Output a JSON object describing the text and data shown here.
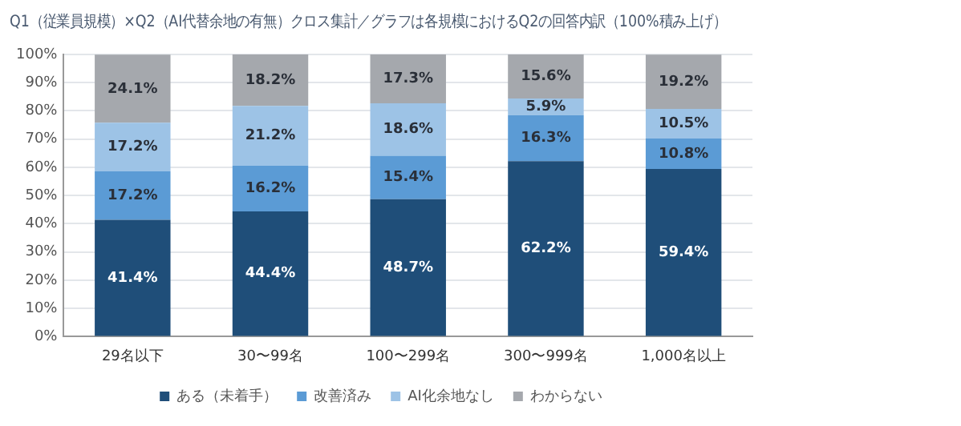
{
  "chart_data": {
    "type": "bar",
    "title": "Q1（従業員規模）×Q2（AI代替余地の有無）クロス集計／グラフは各規模におけるQ2の回答内訳（100%積み上げ）",
    "categories": [
      "29名以下",
      "30〜99名",
      "100〜299名",
      "300〜999名",
      "1,000名以上"
    ],
    "stacked": true,
    "series": [
      {
        "name": "ある（未着手）",
        "color": "#1f4e79",
        "values": [
          41.4,
          44.4,
          48.7,
          62.2,
          59.4
        ],
        "value_labels": [
          "41.4%",
          "44.4%",
          "48.7%",
          "62.2%",
          "59.4%"
        ]
      },
      {
        "name": "改善済み",
        "color": "#5b9bd5",
        "values": [
          17.2,
          16.2,
          15.4,
          16.3,
          10.8
        ],
        "value_labels": [
          "17.2%",
          "16.2%",
          "15.4%",
          "16.3%",
          "10.8%"
        ]
      },
      {
        "name": "AI化余地なし",
        "color": "#9dc3e6",
        "values": [
          17.2,
          21.2,
          18.6,
          5.9,
          10.5
        ],
        "value_labels": [
          "17.2%",
          "21.2%",
          "18.6%",
          "5.9%",
          "10.5%"
        ]
      },
      {
        "name": "わからない",
        "color": "#a5a8ad",
        "values": [
          24.1,
          18.2,
          17.3,
          15.6,
          19.2
        ],
        "value_labels": [
          "24.1%",
          "18.2%",
          "17.3%",
          "15.6%",
          "19.2%"
        ]
      }
    ],
    "ylim": [
      0,
      100
    ],
    "yticks": [
      {
        "value": 0,
        "label": "0%"
      },
      {
        "value": 10,
        "label": "10%"
      },
      {
        "value": 20,
        "label": "20%"
      },
      {
        "value": 30,
        "label": "30%"
      },
      {
        "value": 40,
        "label": "40%"
      },
      {
        "value": 50,
        "label": "50%"
      },
      {
        "value": 60,
        "label": "60%"
      },
      {
        "value": 70,
        "label": "70%"
      },
      {
        "value": 80,
        "label": "80%"
      },
      {
        "value": 90,
        "label": "90%"
      },
      {
        "value": 100,
        "label": "100%"
      }
    ],
    "grid": "y",
    "legend": "bottom"
  }
}
